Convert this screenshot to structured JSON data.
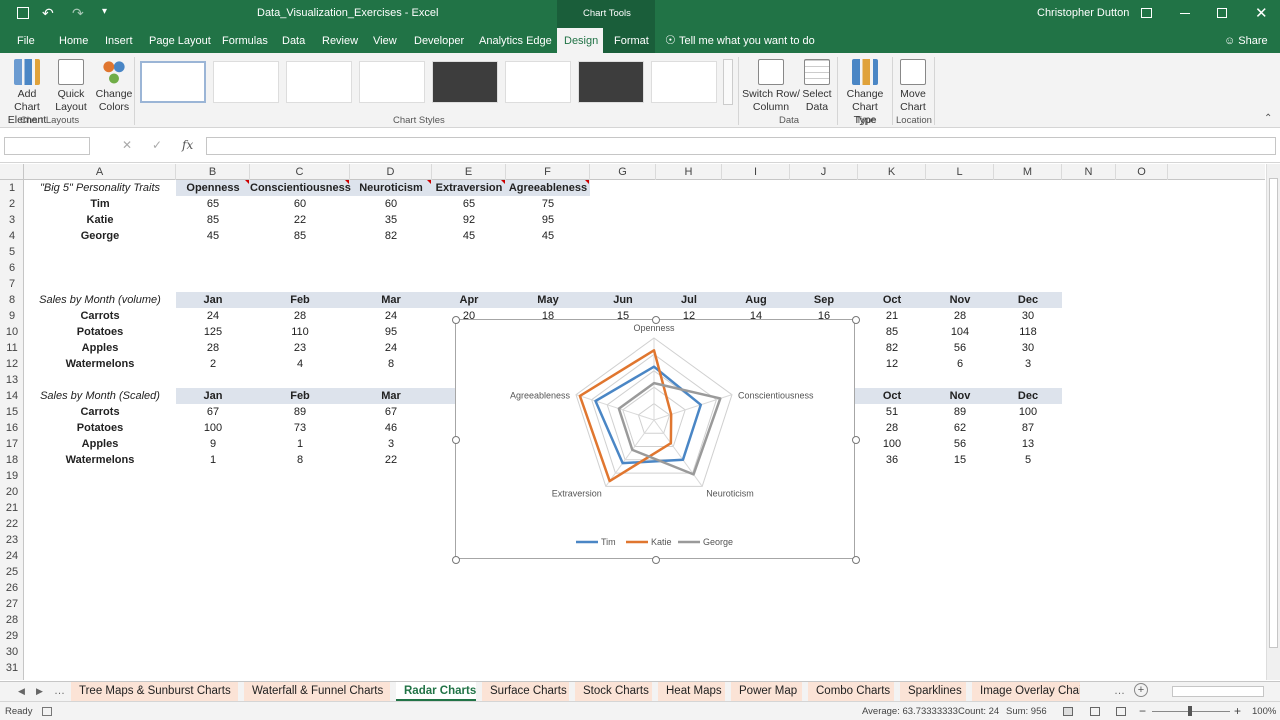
{
  "titlebar": {
    "doc_title": "Data_Visualization_Exercises - Excel",
    "context": "Chart Tools",
    "user": "Christopher Dutton",
    "icons": [
      "save-icon",
      "undo-icon",
      "redo-icon",
      "customize-icon",
      "ribbon-display-icon",
      "minimize-icon",
      "restore-icon",
      "close-icon"
    ]
  },
  "tabs": [
    "File",
    "Home",
    "Insert",
    "Page Layout",
    "Formulas",
    "Data",
    "Review",
    "View",
    "Developer",
    "Analytics Edge",
    "Design",
    "Format"
  ],
  "tell_me": "Tell me what you want to do",
  "share": "Share",
  "ribbon": {
    "add_chart_element": [
      "Add Chart",
      "Element"
    ],
    "quick_layout": [
      "Quick",
      "Layout"
    ],
    "change_colors": [
      "Change",
      "Colors"
    ],
    "group_chart_layouts": "Chart Layouts",
    "group_chart_styles": "Chart Styles",
    "switch_row_column": [
      "Switch Row/",
      "Column"
    ],
    "select_data": [
      "Select",
      "Data"
    ],
    "group_data": "Data",
    "change_chart_type": [
      "Change",
      "Chart Type"
    ],
    "group_type": "Type",
    "move_chart": [
      "Move",
      "Chart"
    ],
    "group_location": "Location"
  },
  "formula_bar": {
    "fx": "fx",
    "name_box": "",
    "value": ""
  },
  "columns": [
    "A",
    "B",
    "C",
    "D",
    "E",
    "F",
    "G",
    "H",
    "I",
    "J",
    "K",
    "L",
    "M",
    "N",
    "O"
  ],
  "rows": [
    "1",
    "2",
    "3",
    "4",
    "5",
    "6",
    "7",
    "8",
    "9",
    "10",
    "11",
    "12",
    "13",
    "14",
    "15",
    "16",
    "17",
    "18",
    "19",
    "20",
    "21",
    "22",
    "23",
    "24",
    "25",
    "26",
    "27",
    "28",
    "29",
    "30",
    "31"
  ],
  "table1": {
    "title": "\"Big 5\" Personality Traits",
    "headers": [
      "Openness",
      "Conscientiousness",
      "Neuroticism",
      "Extraversion",
      "Agreeableness"
    ],
    "rows": [
      {
        "name": "Tim",
        "values": [
          "65",
          "60",
          "60",
          "65",
          "75"
        ]
      },
      {
        "name": "Katie",
        "values": [
          "85",
          "22",
          "35",
          "92",
          "95"
        ]
      },
      {
        "name": "George",
        "values": [
          "45",
          "85",
          "82",
          "45",
          "45"
        ]
      }
    ]
  },
  "table2": {
    "title": "Sales by Month (volume)",
    "headers": [
      "Jan",
      "Feb",
      "Mar",
      "Apr",
      "May",
      "Jun",
      "Jul",
      "Aug",
      "Sep",
      "Oct",
      "Nov",
      "Dec"
    ],
    "peek": [
      "20",
      "18",
      "15",
      "12",
      "14",
      "16"
    ],
    "rows": [
      {
        "name": "Carrots",
        "left": [
          "24",
          "28",
          "24"
        ],
        "right": [
          "21",
          "28",
          "30"
        ]
      },
      {
        "name": "Potatoes",
        "left": [
          "125",
          "110",
          "95"
        ],
        "right": [
          "85",
          "104",
          "118"
        ]
      },
      {
        "name": "Apples",
        "left": [
          "28",
          "23",
          "24"
        ],
        "right": [
          "82",
          "56",
          "30"
        ]
      },
      {
        "name": "Watermelons",
        "left": [
          "2",
          "4",
          "8"
        ],
        "right": [
          "12",
          "6",
          "3"
        ]
      }
    ]
  },
  "table3": {
    "title": "Sales by Month (Scaled)",
    "headers_left": [
      "Jan",
      "Feb",
      "Mar"
    ],
    "headers_right": [
      "Oct",
      "Nov",
      "Dec"
    ],
    "rows": [
      {
        "name": "Carrots",
        "left": [
          "67",
          "89",
          "67"
        ],
        "right": [
          "51",
          "89",
          "100"
        ]
      },
      {
        "name": "Potatoes",
        "left": [
          "100",
          "73",
          "46"
        ],
        "right": [
          "28",
          "62",
          "87"
        ]
      },
      {
        "name": "Apples",
        "left": [
          "9",
          "1",
          "3"
        ],
        "right": [
          "100",
          "56",
          "13"
        ]
      },
      {
        "name": "Watermelons",
        "left": [
          "1",
          "8",
          "22"
        ],
        "right": [
          "36",
          "15",
          "5"
        ]
      }
    ]
  },
  "chart_data": {
    "type": "radar",
    "categories": [
      "Openness",
      "Conscientiousness",
      "Neuroticism",
      "Extraversion",
      "Agreeableness"
    ],
    "series": [
      {
        "name": "Tim",
        "values": [
          65,
          60,
          60,
          65,
          75
        ],
        "color": "#4a86c5"
      },
      {
        "name": "Katie",
        "values": [
          85,
          22,
          35,
          92,
          95
        ],
        "color": "#e0762f"
      },
      {
        "name": "George",
        "values": [
          45,
          85,
          82,
          45,
          45
        ],
        "color": "#9a9a9a"
      }
    ],
    "range": [
      0,
      100
    ],
    "gridlines": 5,
    "legend": "bottom"
  },
  "sheet_tabs": [
    "Tree Maps & Sunburst Charts",
    "Waterfall & Funnel Charts",
    "Radar Charts",
    "Surface Charts",
    "Stock Charts",
    "Heat Maps",
    "Power Map",
    "Combo Charts",
    "Sparklines",
    "Image Overlay Chai"
  ],
  "active_sheet": "Radar Charts",
  "status": {
    "ready": "Ready",
    "average": "Average: 63.73333333",
    "count": "Count: 24",
    "sum": "Sum: 956",
    "zoom": "100%"
  }
}
